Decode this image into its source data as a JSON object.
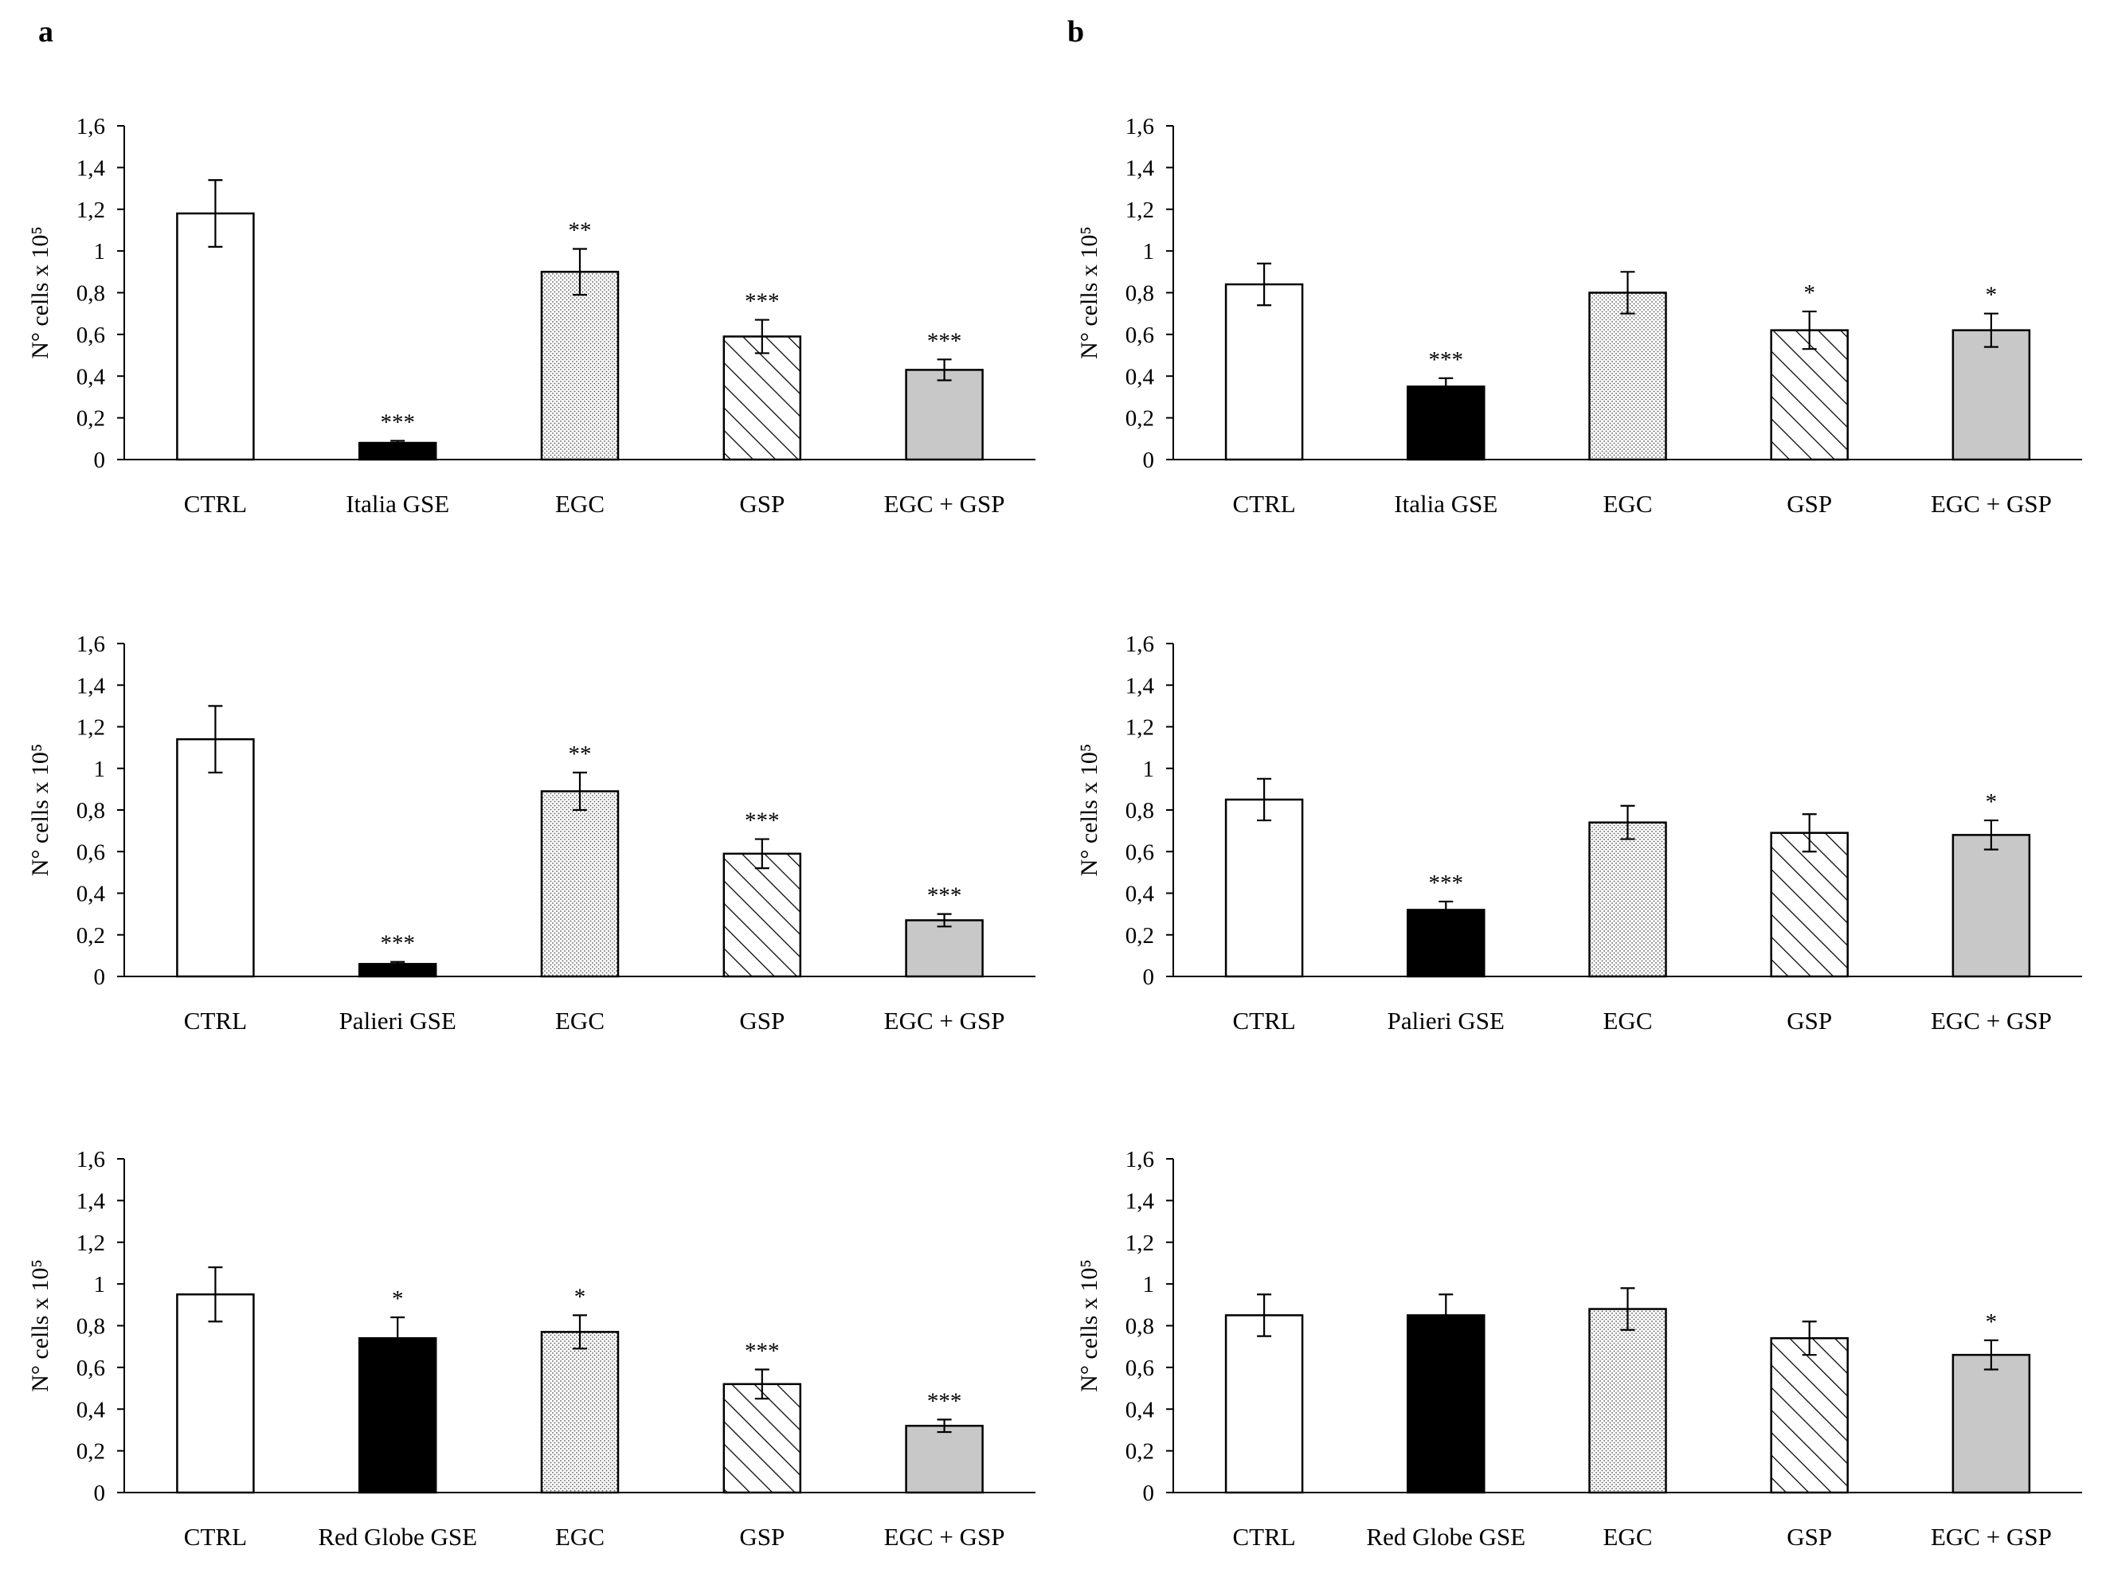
{
  "panels": {
    "a": "a",
    "b": "b"
  },
  "chart_data": [
    {
      "type": "bar",
      "panel": "a",
      "title": "",
      "xlabel": "",
      "ylabel": "N° cells x 10⁵",
      "ylim": [
        0,
        1.6
      ],
      "yticks": [
        "0",
        "0,2",
        "0,4",
        "0,6",
        "0,8",
        "1",
        "1,2",
        "1,4",
        "1,6"
      ],
      "categories": [
        "CTRL",
        "Italia GSE",
        "EGC",
        "GSP",
        "EGC + GSP"
      ],
      "values": [
        1.18,
        0.08,
        0.9,
        0.59,
        0.43
      ],
      "errors": [
        0.16,
        0.01,
        0.11,
        0.08,
        0.05
      ],
      "significance": [
        "",
        "***",
        "**",
        "***",
        "***"
      ]
    },
    {
      "type": "bar",
      "panel": "b",
      "title": "",
      "xlabel": "",
      "ylabel": "N° cells x 10⁵",
      "ylim": [
        0,
        1.6
      ],
      "yticks": [
        "0",
        "0,2",
        "0,4",
        "0,6",
        "0,8",
        "1",
        "1,2",
        "1,4",
        "1,6"
      ],
      "categories": [
        "CTRL",
        "Italia GSE",
        "EGC",
        "GSP",
        "EGC + GSP"
      ],
      "values": [
        0.84,
        0.35,
        0.8,
        0.62,
        0.62
      ],
      "errors": [
        0.1,
        0.04,
        0.1,
        0.09,
        0.08
      ],
      "significance": [
        "",
        "***",
        "",
        "*",
        "*"
      ]
    },
    {
      "type": "bar",
      "panel": "a",
      "title": "",
      "xlabel": "",
      "ylabel": "N° cells x 10⁵",
      "ylim": [
        0,
        1.6
      ],
      "yticks": [
        "0",
        "0,2",
        "0,4",
        "0,6",
        "0,8",
        "1",
        "1,2",
        "1,4",
        "1,6"
      ],
      "categories": [
        "CTRL",
        "Palieri GSE",
        "EGC",
        "GSP",
        "EGC + GSP"
      ],
      "values": [
        1.14,
        0.06,
        0.89,
        0.59,
        0.27
      ],
      "errors": [
        0.16,
        0.01,
        0.09,
        0.07,
        0.03
      ],
      "significance": [
        "",
        "***",
        "**",
        "***",
        "***"
      ]
    },
    {
      "type": "bar",
      "panel": "b",
      "title": "",
      "xlabel": "",
      "ylabel": "N° cells x 10⁵",
      "ylim": [
        0,
        1.6
      ],
      "yticks": [
        "0",
        "0,2",
        "0,4",
        "0,6",
        "0,8",
        "1",
        "1,2",
        "1,4",
        "1,6"
      ],
      "categories": [
        "CTRL",
        "Palieri GSE",
        "EGC",
        "GSP",
        "EGC + GSP"
      ],
      "values": [
        0.85,
        0.32,
        0.74,
        0.69,
        0.68
      ],
      "errors": [
        0.1,
        0.04,
        0.08,
        0.09,
        0.07
      ],
      "significance": [
        "",
        "***",
        "",
        "",
        "*"
      ]
    },
    {
      "type": "bar",
      "panel": "a",
      "title": "",
      "xlabel": "",
      "ylabel": "N° cells x 10⁵",
      "ylim": [
        0,
        1.6
      ],
      "yticks": [
        "0",
        "0,2",
        "0,4",
        "0,6",
        "0,8",
        "1",
        "1,2",
        "1,4",
        "1,6"
      ],
      "categories": [
        "CTRL",
        "Red Globe GSE",
        "EGC",
        "GSP",
        "EGC + GSP"
      ],
      "values": [
        0.95,
        0.74,
        0.77,
        0.52,
        0.32
      ],
      "errors": [
        0.13,
        0.1,
        0.08,
        0.07,
        0.03
      ],
      "significance": [
        "",
        "*",
        "*",
        "***",
        "***"
      ]
    },
    {
      "type": "bar",
      "panel": "b",
      "title": "",
      "xlabel": "",
      "ylabel": "N° cells x 10⁵",
      "ylim": [
        0,
        1.6
      ],
      "yticks": [
        "0",
        "0,2",
        "0,4",
        "0,6",
        "0,8",
        "1",
        "1,2",
        "1,4",
        "1,6"
      ],
      "categories": [
        "CTRL",
        "Red Globe GSE",
        "EGC",
        "GSP",
        "EGC + GSP"
      ],
      "values": [
        0.85,
        0.85,
        0.88,
        0.74,
        0.66
      ],
      "errors": [
        0.1,
        0.1,
        0.1,
        0.08,
        0.07
      ],
      "significance": [
        "",
        "",
        "",
        "",
        "*"
      ]
    }
  ]
}
